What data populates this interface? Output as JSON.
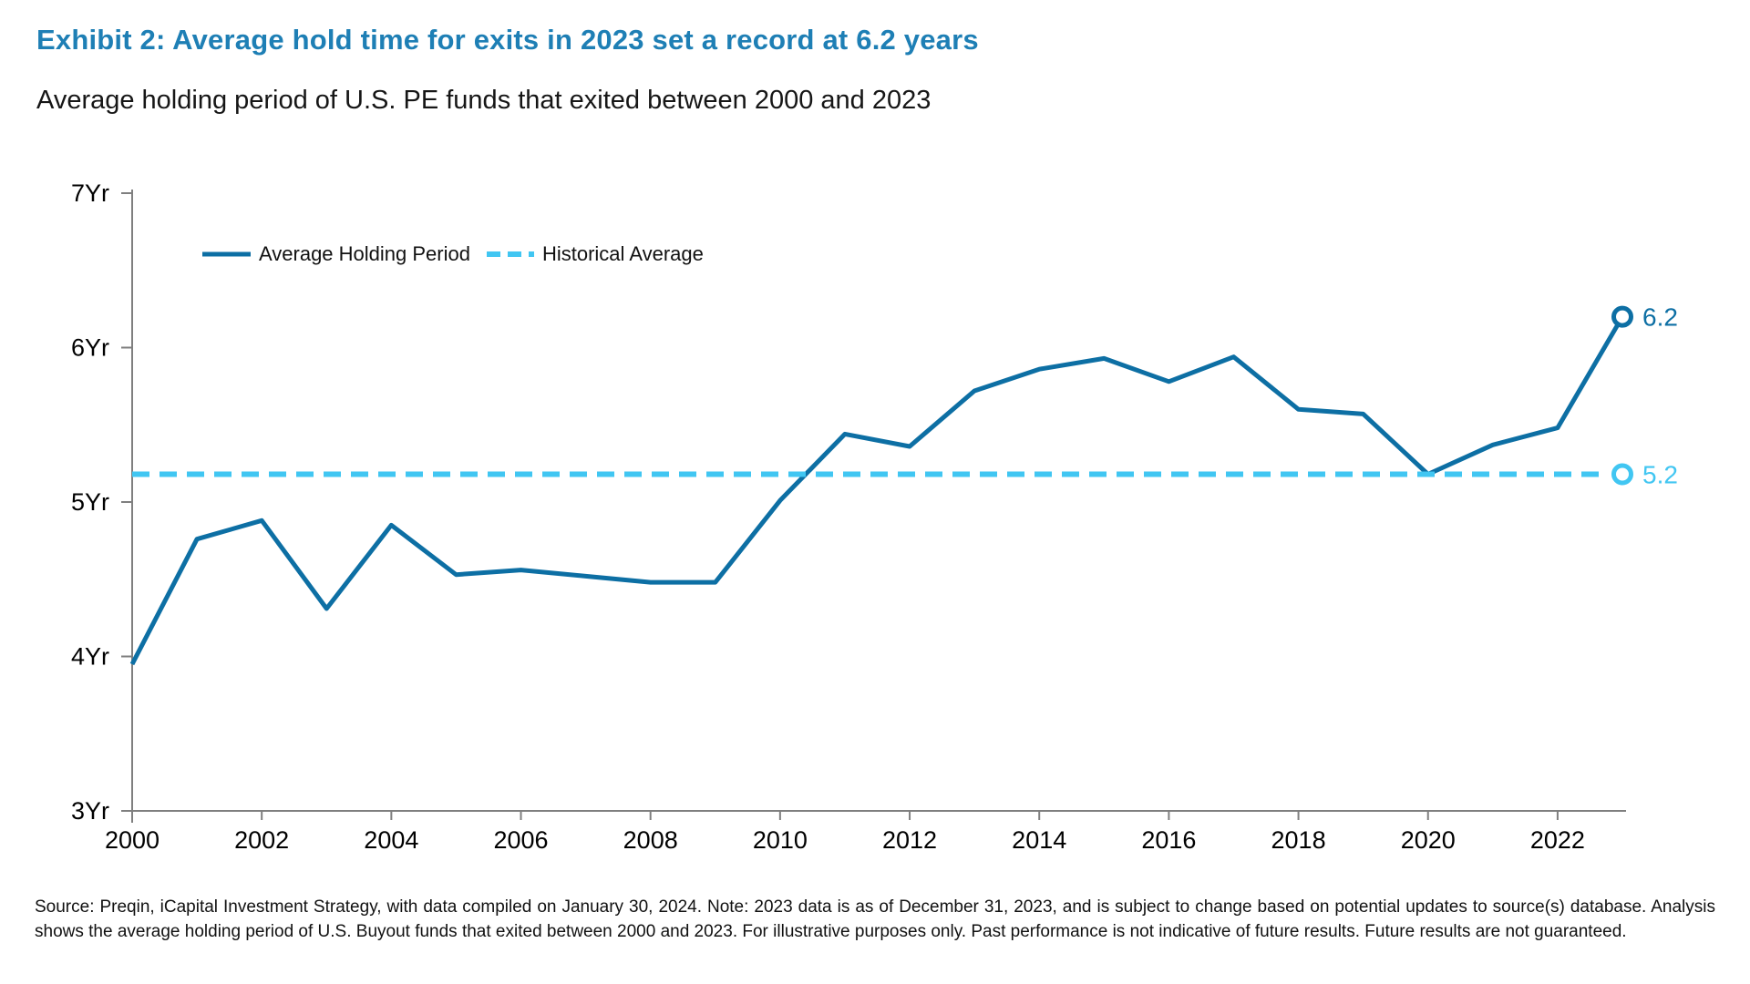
{
  "title": "Exhibit 2: Average hold time for exits in 2023 set a record at 6.2 years",
  "subtitle": "Average holding period of U.S. PE funds that exited between 2000 and 2023",
  "legend": {
    "series_label": "Average Holding Period",
    "average_label": "Historical Average"
  },
  "chart_data": {
    "type": "line",
    "x": [
      2000,
      2001,
      2002,
      2003,
      2004,
      2005,
      2006,
      2007,
      2008,
      2009,
      2010,
      2011,
      2012,
      2013,
      2014,
      2015,
      2016,
      2017,
      2018,
      2019,
      2020,
      2021,
      2022,
      2023
    ],
    "series": [
      {
        "name": "Average Holding Period",
        "values": [
          3.95,
          4.76,
          4.88,
          4.31,
          4.85,
          4.53,
          4.56,
          4.52,
          4.48,
          4.48,
          5.01,
          5.44,
          5.36,
          5.72,
          5.86,
          5.93,
          5.78,
          5.94,
          5.6,
          5.57,
          5.18,
          5.37,
          5.48,
          6.2
        ]
      }
    ],
    "historical_average": {
      "value": 5.18,
      "label": "5.2"
    },
    "end_point_label": "6.2",
    "yticks": [
      {
        "value": 3,
        "label": "3Yr"
      },
      {
        "value": 4,
        "label": "4Yr"
      },
      {
        "value": 5,
        "label": "5Yr"
      },
      {
        "value": 6,
        "label": "6Yr"
      },
      {
        "value": 7,
        "label": "7Yr"
      }
    ],
    "ylim": [
      3,
      7
    ],
    "xticks": [
      2000,
      2002,
      2004,
      2006,
      2008,
      2010,
      2012,
      2014,
      2016,
      2018,
      2020,
      2022
    ],
    "grid": false,
    "legend_position": "top-left",
    "colors": {
      "series": "#0d6fa4",
      "average": "#41c6f2",
      "axis": "#7f7f7f",
      "tick_text": "#000000",
      "title": "#1e7fb5"
    }
  },
  "source_note": "Source: Preqin, iCapital Investment Strategy, with data compiled on January 30, 2024. Note: 2023 data is as of December 31, 2023, and is subject to change based on potential updates to source(s) database. Analysis shows the average holding period of U.S. Buyout funds that exited between 2000 and 2023. For illustrative purposes only. Past performance is not indicative of future results. Future results are not guaranteed."
}
